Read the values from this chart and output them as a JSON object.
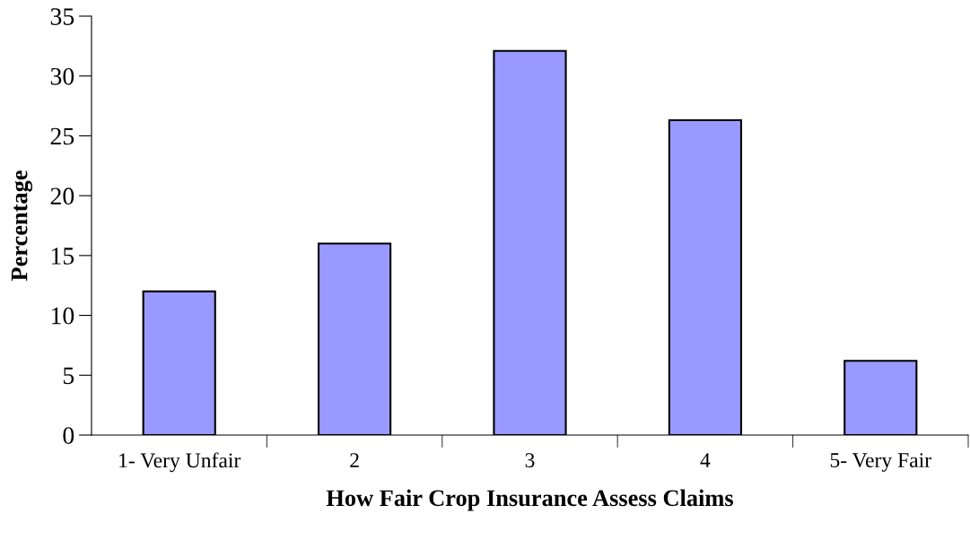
{
  "chart_data": {
    "type": "bar",
    "xlabel": "How Fair Crop Insurance Assess Claims",
    "ylabel": "Percentage",
    "categories": [
      "1- Very Unfair",
      "2",
      "3",
      "4",
      "5- Very Fair"
    ],
    "values": [
      12.0,
      16.0,
      32.1,
      26.3,
      6.2
    ],
    "color": "#9999ff",
    "ylim": [
      0,
      35
    ],
    "yticks": [
      0,
      5,
      10,
      15,
      20,
      25,
      30,
      35
    ],
    "grid": false,
    "legend": false
  }
}
